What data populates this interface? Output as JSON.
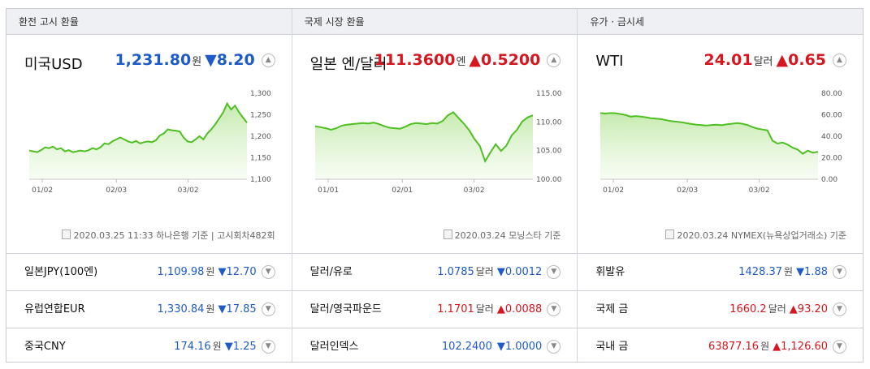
{
  "panels": [
    {
      "header": "환전 고시 환율",
      "title": "미국USD",
      "value": "1,231.80",
      "unit": "원",
      "change": "▼8.20",
      "direction": "down",
      "source": "2020.03.25 11:33 하나은행 기준 | 고시회차482회",
      "rows": [
        {
          "name": "일본JPY(100엔)",
          "value": "1,109.98",
          "unit": "원",
          "change": "▼12.70",
          "direction": "down"
        },
        {
          "name": "유럽연합EUR",
          "value": "1,330.84",
          "unit": "원",
          "change": "▼17.85",
          "direction": "down"
        },
        {
          "name": "중국CNY",
          "value": "174.16",
          "unit": "원",
          "change": "▼1.25",
          "direction": "down"
        }
      ]
    },
    {
      "header": "국제 시장 환율",
      "title": "일본 엔/달러",
      "value": "111.3600",
      "unit": "엔",
      "change": "▲0.5200",
      "direction": "up",
      "source": "2020.03.24 모닝스타 기준",
      "rows": [
        {
          "name": "달러/유로",
          "value": "1.0785",
          "unit": "달러",
          "change": "▼0.0012",
          "direction": "down"
        },
        {
          "name": "달러/영국파운드",
          "value": "1.1701",
          "unit": "달러",
          "change": "▲0.0088",
          "direction": "up"
        },
        {
          "name": "달러인덱스",
          "value": "102.2400",
          "unit": "",
          "change": "▼1.0000",
          "direction": "down"
        }
      ]
    },
    {
      "header": "유가 · 금시세",
      "title": "WTI",
      "value": "24.01",
      "unit": "달러",
      "change": "▲0.65",
      "direction": "up",
      "source": "2020.03.24 NYMEX(뉴욕상업거래소) 기준",
      "rows": [
        {
          "name": "휘발유",
          "value": "1428.37",
          "unit": "원",
          "change": "▼1.88",
          "direction": "down"
        },
        {
          "name": "국제 금",
          "value": "1660.2",
          "unit": "달러",
          "change": "▲93.20",
          "direction": "up"
        },
        {
          "name": "국내 금",
          "value": "63877.16",
          "unit": "원",
          "change": "▲1,126.60",
          "direction": "up"
        }
      ]
    }
  ],
  "chart_data": [
    {
      "type": "area",
      "x_tick_labels": [
        "01/02",
        "02/03",
        "03/02"
      ],
      "y_tick_labels": [
        "1,300",
        "1,250",
        "1,200",
        "1,150",
        "1,100"
      ],
      "ylim": [
        1090,
        1310
      ],
      "values": [
        1162,
        1160,
        1158,
        1163,
        1170,
        1168,
        1172,
        1165,
        1168,
        1160,
        1163,
        1158,
        1160,
        1162,
        1160,
        1163,
        1168,
        1165,
        1170,
        1180,
        1178,
        1185,
        1190,
        1195,
        1190,
        1185,
        1182,
        1186,
        1180,
        1183,
        1185,
        1183,
        1188,
        1200,
        1205,
        1215,
        1213,
        1212,
        1210,
        1195,
        1185,
        1183,
        1190,
        1198,
        1190,
        1205,
        1215,
        1228,
        1243,
        1258,
        1280,
        1265,
        1275,
        1258,
        1245,
        1232
      ],
      "color": "#4fbf22"
    },
    {
      "type": "area",
      "x_tick_labels": [
        "01/01",
        "02/01",
        "03/02"
      ],
      "y_tick_labels": [
        "115.00",
        "110.00",
        "105.00",
        "100.00"
      ],
      "ylim": [
        99,
        116
      ],
      "values": [
        109.3,
        109.1,
        108.9,
        108.6,
        108.9,
        109.4,
        109.6,
        109.7,
        109.8,
        109.9,
        109.8,
        110.0,
        109.7,
        109.3,
        109.0,
        108.9,
        108.8,
        109.2,
        109.7,
        109.9,
        109.8,
        109.7,
        109.9,
        109.8,
        110.3,
        111.4,
        112.0,
        110.9,
        109.8,
        108.5,
        106.8,
        105.5,
        102.5,
        104.2,
        105.8,
        104.5,
        105.5,
        107.5,
        108.6,
        110.2,
        111.0,
        111.4
      ],
      "color": "#4fbf22"
    },
    {
      "type": "area",
      "x_tick_labels": [
        "01/02",
        "02/03",
        "03/02"
      ],
      "y_tick_labels": [
        "80.00",
        "60.00",
        "40.00",
        "20.00",
        "0.00"
      ],
      "ylim": [
        -3,
        83
      ],
      "values": [
        62,
        61.5,
        62,
        61.8,
        61,
        60,
        58.5,
        59,
        58.5,
        57.8,
        57,
        56.5,
        56,
        55,
        54,
        53.5,
        53,
        52,
        51.2,
        50.5,
        50.2,
        49.8,
        50.3,
        50.6,
        50,
        51,
        51.5,
        52.2,
        51.5,
        50.4,
        48.3,
        46.8,
        45.8,
        45,
        35,
        32,
        33,
        31,
        28,
        26,
        22,
        25,
        23,
        24.01
      ],
      "color": "#4fbf22"
    }
  ]
}
